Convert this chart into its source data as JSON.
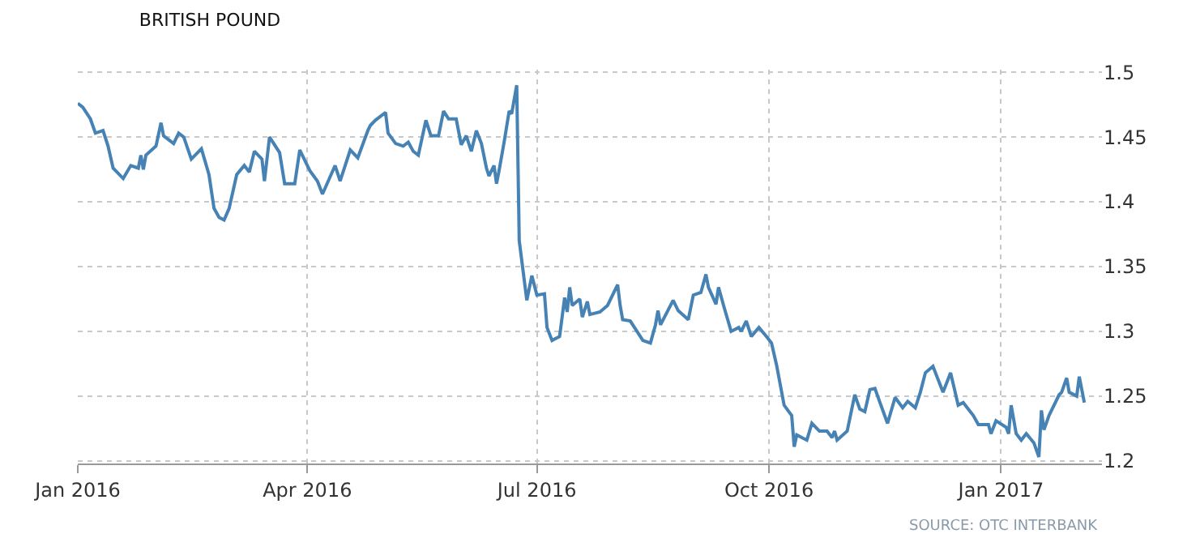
{
  "chart_data": {
    "type": "line",
    "title": "BRITISH POUND",
    "annotations": [
      "SOURCE: OTC INTERBANK"
    ],
    "x": [
      "2016-01-01",
      "2016-01-03",
      "2016-01-06",
      "2016-01-08",
      "2016-01-11",
      "2016-01-13",
      "2016-01-15",
      "2016-01-19",
      "2016-01-22",
      "2016-01-25",
      "2016-01-26",
      "2016-01-27",
      "2016-01-28",
      "2016-02-01",
      "2016-02-03",
      "2016-02-04",
      "2016-02-08",
      "2016-02-10",
      "2016-02-12",
      "2016-02-15",
      "2016-02-19",
      "2016-02-22",
      "2016-02-24",
      "2016-02-26",
      "2016-02-28",
      "2016-03-01",
      "2016-03-04",
      "2016-03-07",
      "2016-03-09",
      "2016-03-11",
      "2016-03-14",
      "2016-03-15",
      "2016-03-17",
      "2016-03-21",
      "2016-03-23",
      "2016-03-27",
      "2016-03-29",
      "2016-04-02",
      "2016-04-05",
      "2016-04-07",
      "2016-04-12",
      "2016-04-14",
      "2016-04-18",
      "2016-04-21",
      "2016-04-25",
      "2016-04-26",
      "2016-04-28",
      "2016-05-02",
      "2016-05-03",
      "2016-05-06",
      "2016-05-09",
      "2016-05-11",
      "2016-05-13",
      "2016-05-15",
      "2016-05-18",
      "2016-05-20",
      "2016-05-23",
      "2016-05-25",
      "2016-05-27",
      "2016-05-30",
      "2016-06-01",
      "2016-06-03",
      "2016-06-05",
      "2016-06-07",
      "2016-06-09",
      "2016-06-11",
      "2016-06-12",
      "2016-06-14",
      "2016-06-15",
      "2016-06-16",
      "2016-06-18",
      "2016-06-20",
      "2016-06-21",
      "2016-06-23",
      "2016-06-24",
      "2016-06-27",
      "2016-06-29",
      "2016-07-01",
      "2016-07-04",
      "2016-07-05",
      "2016-07-07",
      "2016-07-10",
      "2016-07-12",
      "2016-07-13",
      "2016-07-14",
      "2016-07-15",
      "2016-07-18",
      "2016-07-19",
      "2016-07-21",
      "2016-07-22",
      "2016-07-26",
      "2016-07-29",
      "2016-08-02",
      "2016-08-03",
      "2016-08-04",
      "2016-08-07",
      "2016-08-12",
      "2016-08-15",
      "2016-08-17",
      "2016-08-18",
      "2016-08-19",
      "2016-08-24",
      "2016-08-26",
      "2016-08-30",
      "2016-09-01",
      "2016-09-04",
      "2016-09-06",
      "2016-09-07",
      "2016-09-10",
      "2016-09-11",
      "2016-09-13",
      "2016-09-16",
      "2016-09-19",
      "2016-09-20",
      "2016-09-22",
      "2016-09-24",
      "2016-09-27",
      "2016-09-30",
      "2016-10-02",
      "2016-10-04",
      "2016-10-07",
      "2016-10-10",
      "2016-10-11",
      "2016-10-12",
      "2016-10-16",
      "2016-10-18",
      "2016-10-21",
      "2016-10-24",
      "2016-10-26",
      "2016-10-27",
      "2016-10-28",
      "2016-11-01",
      "2016-11-04",
      "2016-11-06",
      "2016-11-08",
      "2016-11-10",
      "2016-11-12",
      "2016-11-14",
      "2016-11-17",
      "2016-11-20",
      "2016-11-23",
      "2016-11-25",
      "2016-11-28",
      "2016-11-30",
      "2016-12-02",
      "2016-12-05",
      "2016-12-09",
      "2016-12-12",
      "2016-12-15",
      "2016-12-17",
      "2016-12-21",
      "2016-12-23",
      "2016-12-27",
      "2016-12-28",
      "2016-12-30",
      "2017-01-03",
      "2017-01-04",
      "2017-01-05",
      "2017-01-07",
      "2017-01-09",
      "2017-01-11",
      "2017-01-14",
      "2017-01-16",
      "2017-01-17",
      "2017-01-18",
      "2017-01-20",
      "2017-01-24",
      "2017-01-25",
      "2017-01-27",
      "2017-01-28",
      "2017-01-31",
      "2017-02-01",
      "2017-02-03"
    ],
    "series": [
      {
        "color": "#4682b4",
        "values": [
          1.476,
          1.473,
          1.464,
          1.453,
          1.455,
          1.443,
          1.426,
          1.418,
          1.428,
          1.426,
          1.436,
          1.425,
          1.436,
          1.443,
          1.461,
          1.451,
          1.445,
          1.453,
          1.45,
          1.433,
          1.441,
          1.421,
          1.395,
          1.388,
          1.386,
          1.395,
          1.421,
          1.428,
          1.423,
          1.439,
          1.433,
          1.416,
          1.45,
          1.438,
          1.414,
          1.414,
          1.44,
          1.424,
          1.416,
          1.406,
          1.428,
          1.416,
          1.44,
          1.434,
          1.455,
          1.459,
          1.463,
          1.469,
          1.453,
          1.445,
          1.443,
          1.446,
          1.439,
          1.436,
          1.463,
          1.451,
          1.451,
          1.47,
          1.464,
          1.464,
          1.444,
          1.451,
          1.439,
          1.455,
          1.445,
          1.426,
          1.42,
          1.428,
          1.414,
          1.424,
          1.446,
          1.47,
          1.468,
          1.49,
          1.37,
          1.324,
          1.343,
          1.328,
          1.329,
          1.303,
          1.293,
          1.296,
          1.326,
          1.315,
          1.334,
          1.32,
          1.325,
          1.311,
          1.323,
          1.313,
          1.315,
          1.32,
          1.336,
          1.32,
          1.309,
          1.308,
          1.293,
          1.291,
          1.305,
          1.316,
          1.305,
          1.324,
          1.316,
          1.309,
          1.328,
          1.33,
          1.344,
          1.334,
          1.321,
          1.334,
          1.32,
          1.3,
          1.303,
          1.3,
          1.308,
          1.296,
          1.303,
          1.296,
          1.291,
          1.274,
          1.243,
          1.235,
          1.211,
          1.22,
          1.216,
          1.229,
          1.223,
          1.223,
          1.218,
          1.223,
          1.216,
          1.223,
          1.251,
          1.24,
          1.238,
          1.255,
          1.256,
          1.245,
          1.229,
          1.249,
          1.241,
          1.246,
          1.241,
          1.253,
          1.268,
          1.273,
          1.253,
          1.268,
          1.243,
          1.245,
          1.235,
          1.228,
          1.228,
          1.221,
          1.231,
          1.226,
          1.221,
          1.243,
          1.221,
          1.216,
          1.221,
          1.214,
          1.203,
          1.239,
          1.224,
          1.235,
          1.251,
          1.253,
          1.264,
          1.253,
          1.25,
          1.265,
          1.245
        ]
      }
    ],
    "xlim": [
      "2016-01-01",
      "2017-02-10"
    ],
    "xticks": [
      {
        "value": "2016-01-01",
        "label": "Jan 2016"
      },
      {
        "value": "2016-04-01",
        "label": "Apr 2016"
      },
      {
        "value": "2016-07-01",
        "label": "Jul 2016"
      },
      {
        "value": "2016-10-01",
        "label": "Oct 2016"
      },
      {
        "value": "2017-01-01",
        "label": "Jan 2017"
      }
    ],
    "ylim": [
      1.198,
      1.502
    ],
    "yticks": [
      1.2,
      1.25,
      1.3,
      1.35,
      1.4,
      1.45,
      1.5
    ],
    "grid": true,
    "marker": "none",
    "line_style": "solid"
  }
}
